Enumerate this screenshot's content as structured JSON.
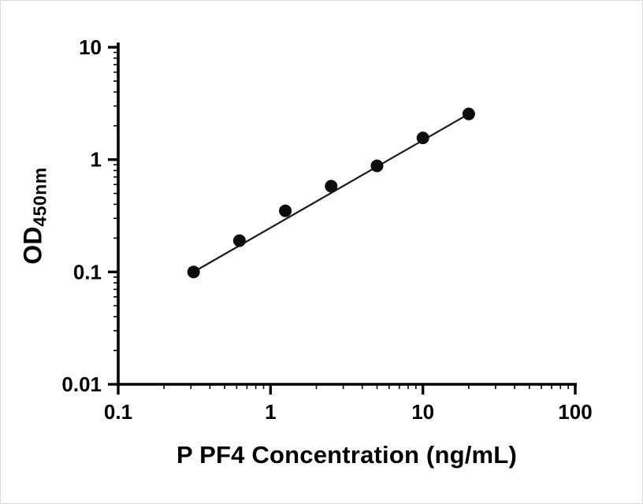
{
  "figure": {
    "background": "#ffffff",
    "border_color": "#dcdcdc"
  },
  "chart_data": {
    "type": "scatter",
    "title": "",
    "xlabel": "P PF4 Concentration (ng/mL)",
    "ylabel_main": "OD",
    "ylabel_sub": "450nm",
    "x_scale": "log",
    "y_scale": "log",
    "xlim": [
      0.1,
      100
    ],
    "ylim": [
      0.01,
      10
    ],
    "grid": false,
    "legend": "none",
    "x_ticks": [
      {
        "v": 0.1,
        "label": "0.1"
      },
      {
        "v": 1,
        "label": "1"
      },
      {
        "v": 10,
        "label": "10"
      },
      {
        "v": 100,
        "label": "100"
      }
    ],
    "y_ticks": [
      {
        "v": 0.01,
        "label": "0.01"
      },
      {
        "v": 0.1,
        "label": "0.1"
      },
      {
        "v": 1,
        "label": "1"
      },
      {
        "v": 10,
        "label": "10"
      }
    ],
    "points": [
      {
        "x": 0.3125,
        "y": 0.1
      },
      {
        "x": 0.625,
        "y": 0.19
      },
      {
        "x": 1.25,
        "y": 0.35
      },
      {
        "x": 2.5,
        "y": 0.58
      },
      {
        "x": 5,
        "y": 0.88
      },
      {
        "x": 10,
        "y": 1.56
      },
      {
        "x": 20,
        "y": 2.55
      }
    ],
    "trendline": {
      "type": "segment",
      "from_x": 0.3125,
      "to_x": 20
    },
    "colors": {
      "axis": "#000000",
      "point": "#0d0d0d",
      "line": "#1a1a1a"
    }
  }
}
